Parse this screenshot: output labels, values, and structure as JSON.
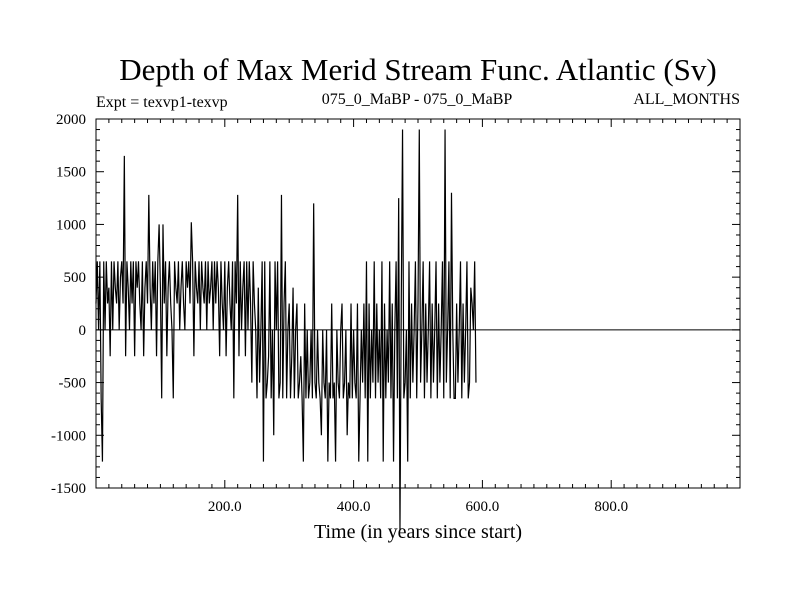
{
  "chart_data": {
    "type": "line",
    "title": "Depth of Max Merid Stream Func. Atlantic (Sv)",
    "subtitle_left": "Expt = texvp1-texvp",
    "subtitle_center": "075_0_MaBP - 075_0_MaBP",
    "subtitle_right": "ALL_MONTHS",
    "xlabel": "Time (in years since start)",
    "ylabel": "",
    "xlim": [
      0,
      1000
    ],
    "ylim": [
      -1500,
      2000
    ],
    "x_ticks": [
      200,
      400,
      600,
      800
    ],
    "x_tick_labels": [
      "200.0",
      "400.0",
      "600.0",
      "800.0"
    ],
    "y_ticks": [
      -1500,
      -1000,
      -500,
      0,
      500,
      1000,
      1500,
      2000
    ],
    "y_tick_labels": [
      "-1500",
      "-1000",
      "-500",
      "0",
      "500",
      "1000",
      "1500",
      "2000"
    ],
    "zero_line": true,
    "series": [
      {
        "name": "Depth of Max Merid Stream Func.",
        "x_start": 0,
        "x_step": 2,
        "values": [
          250,
          650,
          0,
          650,
          -650,
          -1250,
          650,
          0,
          650,
          250,
          400,
          -250,
          650,
          0,
          650,
          400,
          250,
          650,
          0,
          500,
          650,
          250,
          1650,
          -250,
          650,
          400,
          0,
          650,
          250,
          650,
          -250,
          650,
          400,
          650,
          250,
          0,
          650,
          -250,
          400,
          650,
          250,
          1280,
          400,
          0,
          650,
          250,
          650,
          -250,
          650,
          1000,
          400,
          -650,
          1000,
          250,
          650,
          -250,
          400,
          650,
          250,
          0,
          -650,
          650,
          400,
          250,
          650,
          0,
          400,
          650,
          250,
          0,
          650,
          400,
          650,
          250,
          1020,
          650,
          -250,
          650,
          400,
          250,
          650,
          0,
          650,
          400,
          250,
          650,
          0,
          650,
          250,
          400,
          650,
          0,
          650,
          250,
          650,
          400,
          -250,
          650,
          250,
          0,
          650,
          -250,
          400,
          650,
          250,
          0,
          650,
          -650,
          650,
          250,
          1280,
          -250,
          650,
          0,
          400,
          650,
          -250,
          650,
          0,
          650,
          250,
          -500,
          650,
          250,
          0,
          -650,
          400,
          -500,
          0,
          650,
          -1250,
          650,
          -650,
          -500,
          -250,
          650,
          -650,
          0,
          -1000,
          650,
          0,
          650,
          -650,
          -500,
          1280,
          -650,
          250,
          650,
          -650,
          0,
          250,
          -650,
          -250,
          400,
          -650,
          0,
          250,
          -650,
          -500,
          -250,
          -650,
          -1250,
          250,
          -650,
          0,
          -650,
          -500,
          0,
          -650,
          1200,
          -500,
          -650,
          0,
          -500,
          -650,
          -1000,
          0,
          -500,
          -650,
          0,
          -1250,
          -500,
          -650,
          250,
          -650,
          -500,
          -1250,
          0,
          -500,
          -650,
          0,
          250,
          -650,
          -500,
          0,
          -1000,
          -500,
          -650,
          250,
          -650,
          0,
          -500,
          -650,
          250,
          -1250,
          -650,
          0,
          -500,
          250,
          -650,
          650,
          -1250,
          250,
          -650,
          0,
          -500,
          650,
          -650,
          250,
          -500,
          0,
          -650,
          650,
          -1250,
          250,
          -650,
          0,
          -500,
          650,
          -650,
          250,
          -1250,
          0,
          650,
          -650,
          1250,
          -1900,
          250,
          1900,
          -650,
          -500,
          0,
          -1250,
          650,
          -650,
          250,
          -500,
          0,
          650,
          -650,
          250,
          1900,
          -500,
          0,
          650,
          -650,
          250,
          -500,
          0,
          650,
          -650,
          250,
          -500,
          0,
          650,
          -650,
          250,
          -500,
          0,
          650,
          -650,
          1900,
          -500,
          0,
          650,
          -650,
          1300,
          0,
          -650,
          -650,
          250,
          -500,
          0,
          650,
          -650,
          250,
          -500,
          0,
          650,
          -650,
          -500,
          400,
          250,
          0,
          650,
          -500
        ]
      }
    ]
  }
}
